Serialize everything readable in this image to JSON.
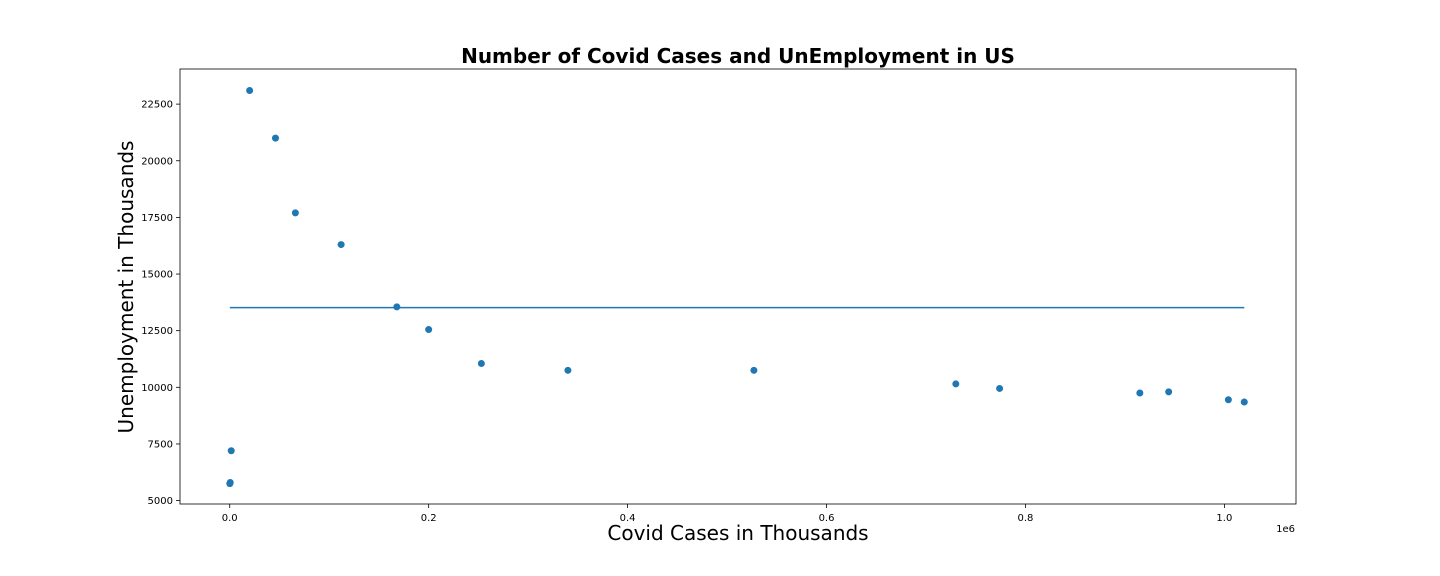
{
  "chart_data": {
    "type": "scatter",
    "title": "Number of Covid Cases and UnEmployment in US",
    "xlabel": "Covid Cases in Thousands",
    "ylabel": "Unemployment in Thousands",
    "x_offset_label": "1e6",
    "xlim": [
      -50000,
      1072000
    ],
    "ylim": [
      4850,
      24050
    ],
    "x_ticks": [
      0,
      200000,
      400000,
      600000,
      800000,
      1000000
    ],
    "x_tick_labels": [
      "0.0",
      "0.2",
      "0.4",
      "0.6",
      "0.8",
      "1.0"
    ],
    "y_ticks": [
      5000,
      7500,
      10000,
      12500,
      15000,
      17500,
      20000,
      22500
    ],
    "y_tick_labels": [
      "5000",
      "7500",
      "10000",
      "12500",
      "15000",
      "17500",
      "20000",
      "22500"
    ],
    "grid": false,
    "series": [
      {
        "x": [
          100,
          500,
          1500,
          20000,
          46000,
          66000,
          112000,
          168000,
          200000,
          253000,
          340000,
          527000,
          730000,
          774000,
          915000,
          944000,
          1004000,
          1020000
        ],
        "y": [
          5750,
          5800,
          7200,
          23100,
          21000,
          17700,
          16300,
          13550,
          12550,
          11050,
          10750,
          10750,
          10150,
          9950,
          9750,
          9800,
          9450,
          9350
        ]
      }
    ],
    "reference_line": {
      "x": [
        100,
        1020000
      ],
      "y": [
        13520,
        13520
      ]
    }
  }
}
